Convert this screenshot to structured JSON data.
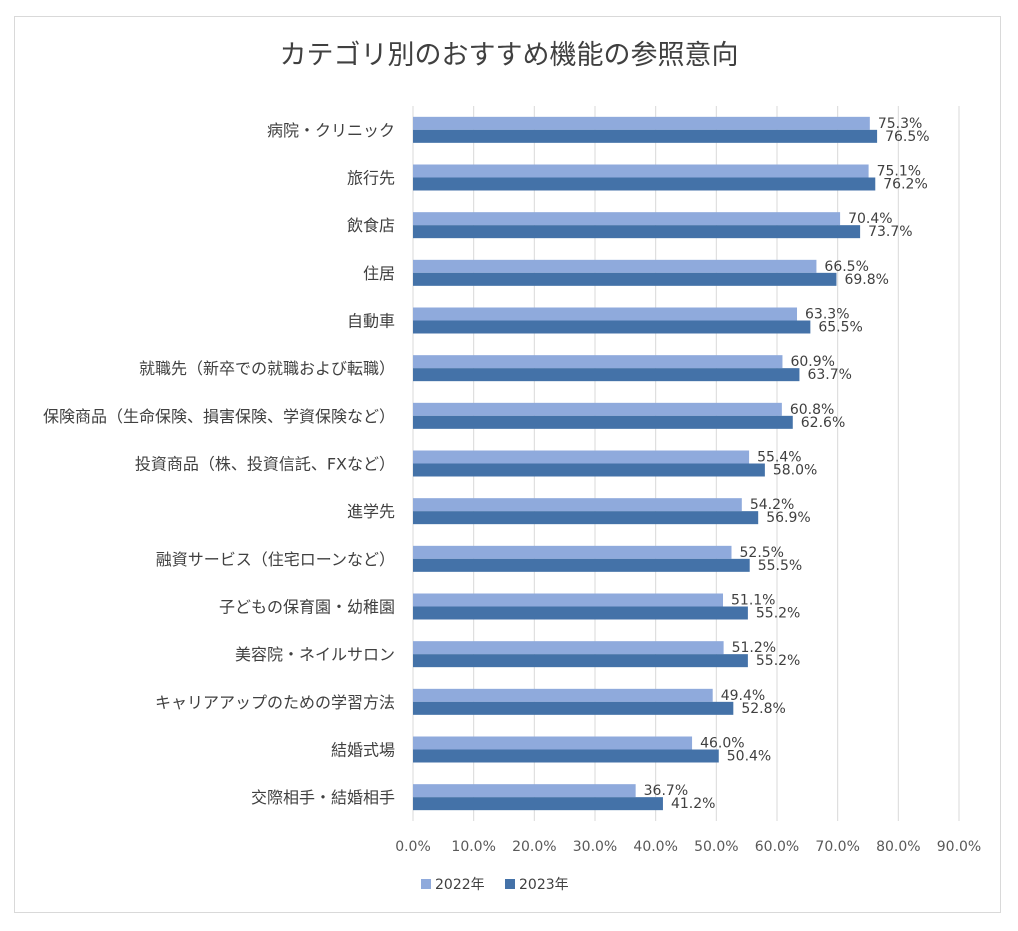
{
  "chart_data": {
    "type": "bar",
    "orientation": "horizontal",
    "title": "カテゴリ別のおすすめ機能の参照意向",
    "categories": [
      "病院・クリニック",
      "旅行先",
      "飲食店",
      "住居",
      "自動車",
      "就職先（新卒での就職および転職）",
      "保険商品（生命保険、損害保険、学資保険など）",
      "投資商品（株、投資信託、FXなど）",
      "進学先",
      "融資サービス（住宅ローンなど）",
      "子どもの保育園・幼稚園",
      "美容院・ネイルサロン",
      "キャリアアップのための学習方法",
      "結婚式場",
      "交際相手・結婚相手"
    ],
    "series": [
      {
        "name": "2022年",
        "color": "#8faadc",
        "values": [
          75.3,
          75.1,
          70.4,
          66.5,
          63.3,
          60.9,
          60.8,
          55.4,
          54.2,
          52.5,
          51.1,
          51.2,
          49.4,
          46.0,
          36.7
        ],
        "labels": [
          "75.3%",
          "75.1%",
          "70.4%",
          "66.5%",
          "63.3%",
          "60.9%",
          "60.8%",
          "55.4%",
          "54.2%",
          "52.5%",
          "51.1%",
          "51.2%",
          "49.4%",
          "46.0%",
          "36.7%"
        ]
      },
      {
        "name": "2023年",
        "color": "#4472a8",
        "values": [
          76.5,
          76.2,
          73.7,
          69.8,
          65.5,
          63.7,
          62.6,
          58.0,
          56.9,
          55.5,
          55.2,
          55.2,
          52.8,
          50.4,
          41.2
        ],
        "labels": [
          "76.5%",
          "76.2%",
          "73.7%",
          "69.8%",
          "65.5%",
          "63.7%",
          "62.6%",
          "58.0%",
          "56.9%",
          "55.5%",
          "55.2%",
          "55.2%",
          "52.8%",
          "50.4%",
          "41.2%"
        ]
      }
    ],
    "x_ticks": [
      0,
      10,
      20,
      30,
      40,
      50,
      60,
      70,
      80,
      90
    ],
    "x_tick_labels": [
      "0.0%",
      "10.0%",
      "20.0%",
      "30.0%",
      "40.0%",
      "50.0%",
      "60.0%",
      "70.0%",
      "80.0%",
      "90.0%"
    ],
    "xlim": [
      0,
      90
    ],
    "xlabel": "",
    "ylabel": "",
    "grid": "vertical",
    "legend_position": "bottom"
  }
}
